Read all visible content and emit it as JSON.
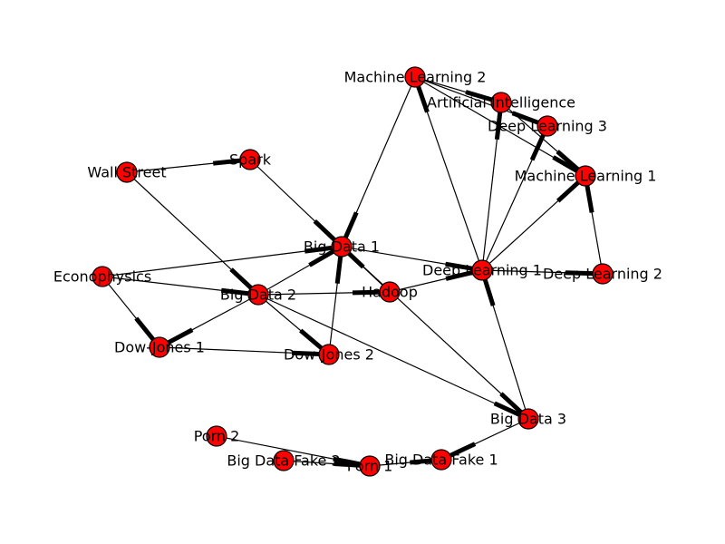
{
  "graph": {
    "node_color": "#ff0000",
    "nodes": [
      {
        "id": "ml2",
        "label": "Machine Learning 2"
      },
      {
        "id": "ai",
        "label": "Artificial Intelligence"
      },
      {
        "id": "dl3",
        "label": "Deep Learning 3"
      },
      {
        "id": "ml1",
        "label": "Machine Learning 1"
      },
      {
        "id": "ws",
        "label": "Wall Street"
      },
      {
        "id": "spark",
        "label": "Spark"
      },
      {
        "id": "bd1",
        "label": "Big Data 1"
      },
      {
        "id": "dl1",
        "label": "Deep Learning 1"
      },
      {
        "id": "dl2",
        "label": "Deep Learning 2"
      },
      {
        "id": "econ",
        "label": "Econophysics"
      },
      {
        "id": "bd2",
        "label": "Big Data 2"
      },
      {
        "id": "hadoop",
        "label": "Hadoop"
      },
      {
        "id": "dj1",
        "label": "Dow-Jones 1"
      },
      {
        "id": "dj2",
        "label": "Dow-Jones 2"
      },
      {
        "id": "bd3",
        "label": "Big Data 3"
      },
      {
        "id": "porn2",
        "label": "Porn 2"
      },
      {
        "id": "bdf2",
        "label": "Big Data Fake 2"
      },
      {
        "id": "porn1",
        "label": "Porn 1"
      },
      {
        "id": "bdf1",
        "label": "Big Data Fake 1"
      }
    ],
    "edges": [
      {
        "source": "ws",
        "target": "spark"
      },
      {
        "source": "spark",
        "target": "bd1"
      },
      {
        "source": "ws",
        "target": "bd2"
      },
      {
        "source": "ml2",
        "target": "bd1"
      },
      {
        "source": "ml2",
        "target": "ai"
      },
      {
        "source": "ml2",
        "target": "dl3"
      },
      {
        "source": "ml2",
        "target": "ml1"
      },
      {
        "source": "dl1",
        "target": "ml2"
      },
      {
        "source": "ai",
        "target": "ml1"
      },
      {
        "source": "dl1",
        "target": "ai"
      },
      {
        "source": "dl1",
        "target": "dl3"
      },
      {
        "source": "dl1",
        "target": "ml1"
      },
      {
        "source": "dl2",
        "target": "ml1"
      },
      {
        "source": "bd1",
        "target": "dl1"
      },
      {
        "source": "dl1",
        "target": "dl2"
      },
      {
        "source": "econ",
        "target": "bd1"
      },
      {
        "source": "econ",
        "target": "bd2"
      },
      {
        "source": "econ",
        "target": "dj1"
      },
      {
        "source": "bd2",
        "target": "bd1"
      },
      {
        "source": "bd2",
        "target": "hadoop"
      },
      {
        "source": "bd2",
        "target": "dj1"
      },
      {
        "source": "bd2",
        "target": "dj2"
      },
      {
        "source": "bd2",
        "target": "bd3"
      },
      {
        "source": "hadoop",
        "target": "bd1"
      },
      {
        "source": "hadoop",
        "target": "dl1"
      },
      {
        "source": "bd1",
        "target": "bd3"
      },
      {
        "source": "dj1",
        "target": "dj2"
      },
      {
        "source": "dj2",
        "target": "bd1"
      },
      {
        "source": "bd3",
        "target": "dl1"
      },
      {
        "source": "bd3",
        "target": "bdf1"
      },
      {
        "source": "porn2",
        "target": "porn1"
      },
      {
        "source": "bdf2",
        "target": "porn1"
      },
      {
        "source": "porn1",
        "target": "bdf1"
      }
    ]
  }
}
